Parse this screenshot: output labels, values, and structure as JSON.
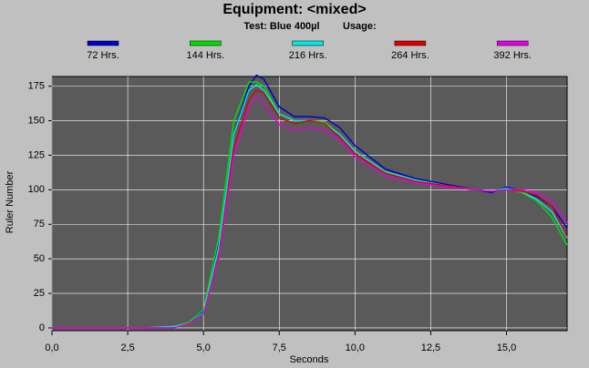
{
  "chart_data": {
    "type": "line",
    "title": "Equipment: <mixed>",
    "subtitle": "Test: Blue 400µl",
    "annotations": [
      "Usage:"
    ],
    "x_label": "Seconds",
    "y_label": "Ruler Number",
    "x": [
      0,
      1,
      2,
      3,
      4,
      4.5,
      5,
      5.5,
      6,
      6.5,
      6.75,
      7,
      7.5,
      8,
      8.5,
      9,
      9.5,
      10,
      11,
      12,
      13,
      14,
      14.5,
      15,
      15.5,
      16,
      16.5,
      17
    ],
    "series": [
      {
        "name": "72 Hrs.",
        "color": "#0000c8",
        "values": [
          0,
          0,
          0,
          0,
          1,
          4,
          12,
          60,
          140,
          175,
          183,
          180,
          160,
          153,
          153,
          152,
          145,
          132,
          115,
          108,
          104,
          100,
          98,
          102,
          99,
          95,
          88,
          72
        ]
      },
      {
        "name": "144 Hrs.",
        "color": "#00e000",
        "values": [
          0,
          0,
          0,
          0,
          1,
          4,
          13,
          65,
          150,
          178,
          178,
          175,
          155,
          150,
          150,
          149,
          140,
          128,
          113,
          107,
          103,
          100,
          99,
          101,
          98,
          92,
          80,
          60
        ]
      },
      {
        "name": "216 Hrs.",
        "color": "#00e8e8",
        "values": [
          0,
          0,
          0,
          0,
          1,
          3,
          11,
          58,
          140,
          172,
          176,
          172,
          155,
          150,
          150,
          148,
          140,
          128,
          113,
          107,
          103,
          100,
          99,
          101,
          99,
          93,
          84,
          65
        ]
      },
      {
        "name": "264 Hrs.",
        "color": "#e00000",
        "values": [
          0,
          0,
          0,
          0,
          0,
          3,
          10,
          52,
          130,
          165,
          172,
          170,
          152,
          148,
          150,
          148,
          138,
          126,
          112,
          106,
          103,
          100,
          99,
          100,
          99,
          96,
          88,
          66
        ]
      },
      {
        "name": "392 Hrs.",
        "color": "#e000e0",
        "values": [
          0,
          0,
          0,
          0,
          0,
          3,
          10,
          50,
          125,
          160,
          168,
          162,
          147,
          143,
          145,
          143,
          136,
          124,
          110,
          105,
          102,
          100,
          99,
          100,
          100,
          98,
          92,
          76
        ]
      }
    ],
    "xlim": [
      0,
      17
    ],
    "ylim": [
      -2,
      182
    ],
    "xticks": [
      {
        "value": 0,
        "label": "0,0"
      },
      {
        "value": 2.5,
        "label": "2,5"
      },
      {
        "value": 5,
        "label": "5,0"
      },
      {
        "value": 7.5,
        "label": "7,5"
      },
      {
        "value": 10,
        "label": "10,0"
      },
      {
        "value": 12.5,
        "label": "12,5"
      },
      {
        "value": 15,
        "label": "15,0"
      }
    ],
    "yticks": [
      0,
      25,
      50,
      75,
      100,
      125,
      150,
      175
    ],
    "grid": true,
    "legend": "top"
  }
}
